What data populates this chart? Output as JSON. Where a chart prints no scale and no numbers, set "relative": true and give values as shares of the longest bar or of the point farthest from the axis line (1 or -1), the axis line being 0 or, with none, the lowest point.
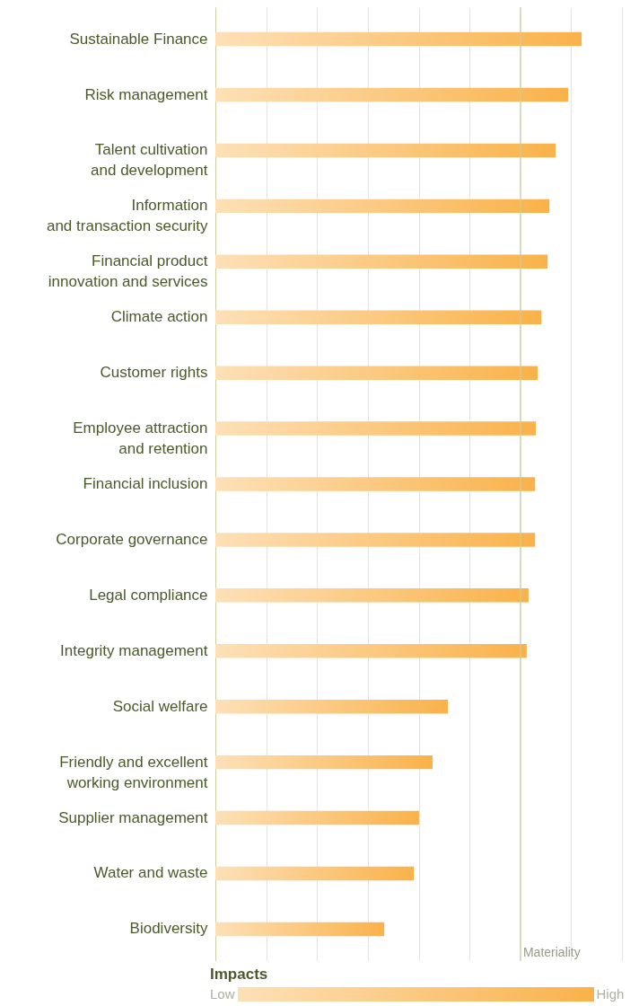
{
  "chart_data": {
    "type": "bar",
    "orientation": "horizontal",
    "relative": true,
    "grid": "x",
    "categories": [
      "Sustainable Finance",
      "Risk management",
      "Talent cultivation\nand development",
      "Information\nand transaction security",
      "Financial product\ninnovation and services",
      "Climate action",
      "Customer rights",
      "Employee attraction\nand retention",
      "Financial inclusion",
      "Corporate governance",
      "Legal compliance",
      "Integrity management",
      "Social welfare",
      "Friendly and excellent\nworking environment",
      "Supplier management",
      "Water and waste",
      "Biodiversity"
    ],
    "series": [
      {
        "color": "#f9b24a",
        "values": [
          1,
          0.963,
          0.929,
          0.912,
          0.907,
          0.89,
          0.88,
          0.875,
          0.873,
          0.873,
          0.855,
          0.85,
          0.635,
          0.593,
          0.556,
          0.542,
          0.461
        ]
      }
    ],
    "ref_lines": [
      {
        "axis": "x",
        "value": 0.833,
        "label": "Materiality",
        "color": "#c8d0a0"
      }
    ],
    "legend_title": "Impacts",
    "annotations": [
      "Low",
      "High"
    ]
  }
}
